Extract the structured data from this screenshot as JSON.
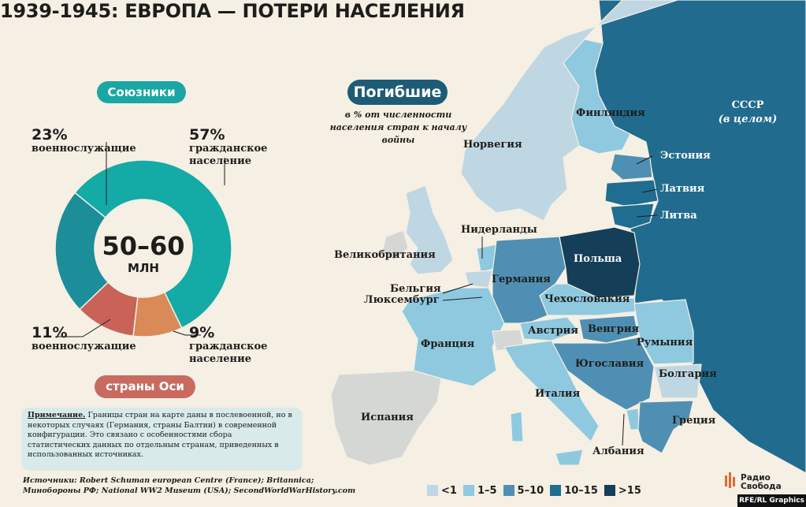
{
  "title": "1939-1945: ЕВРОПА — ПОТЕРИ НАСЕЛЕНИЯ",
  "allies_label": "Союзники",
  "axis_label": "страны Оси",
  "total": {
    "value": "50–60",
    "unit": "МЛН"
  },
  "deaths_badge": "Погибшие",
  "deaths_description": "в % от численности населения стран к началу войны",
  "chart_data": {
    "type": "pie",
    "center_label": "50–60 МЛН",
    "slices": [
      {
        "label": "военнослужащие",
        "group": "Союзники",
        "value": 23,
        "display": "23%",
        "color": "#1b8e99"
      },
      {
        "label": "гражданское население",
        "group": "Союзники",
        "value": 57,
        "display": "57%",
        "color": "#14aaa6"
      },
      {
        "label": "военнослужащие",
        "group": "страны Оси",
        "value": 11,
        "display": "11%",
        "color": "#c96257"
      },
      {
        "label": "гражданское население",
        "group": "страны Оси",
        "value": 9,
        "display": "9%",
        "color": "#d98a56"
      }
    ]
  },
  "map_legend": [
    {
      "label": "<1",
      "color": "#bfd7e2"
    },
    {
      "label": "1–5",
      "color": "#8ec9e0"
    },
    {
      "label": "5–10",
      "color": "#4f8fb3"
    },
    {
      "label": "10–15",
      "color": "#1f6d91"
    },
    {
      "label": ">15",
      "color": "#153e59"
    }
  ],
  "colors": {
    "neutral": "#d4d7d4",
    "ussr": "#216b8f"
  },
  "countries": [
    {
      "name": "СССР",
      "class": "10–15"
    },
    {
      "name": "(в целом)"
    },
    {
      "name": "Финляндия",
      "class": "1–5"
    },
    {
      "name": "Норвегия",
      "class": "<1"
    },
    {
      "name": "Эстония",
      "class": "5–10"
    },
    {
      "name": "Латвия",
      "class": "10–15"
    },
    {
      "name": "Литва",
      "class": "10–15"
    },
    {
      "name": "Нидерланды",
      "class": "1–5"
    },
    {
      "name": "Великобритания",
      "class": "<1"
    },
    {
      "name": "Польша",
      "class": ">15"
    },
    {
      "name": "Германия",
      "class": "5–10"
    },
    {
      "name": "Бельгия",
      "class": "<1"
    },
    {
      "name": "Люксембург",
      "class": "1–5"
    },
    {
      "name": "Чехословакия",
      "class": "1–5"
    },
    {
      "name": "Австрия",
      "class": "1–5"
    },
    {
      "name": "Венгрия",
      "class": "5–10"
    },
    {
      "name": "Франция",
      "class": "1–5"
    },
    {
      "name": "Румыния",
      "class": "1–5"
    },
    {
      "name": "Югославия",
      "class": "5–10"
    },
    {
      "name": "Болгария",
      "class": "<1"
    },
    {
      "name": "Италия",
      "class": "1–5"
    },
    {
      "name": "Испания",
      "class": "нет данных"
    },
    {
      "name": "Греция",
      "class": "5–10"
    },
    {
      "name": "Албания",
      "class": "1–5"
    }
  ],
  "note_head": "Примечание.",
  "note_text": "Границы стран на карте даны в послевоенной, но в некоторых случаях (Германия, страны Балтии) в современной конфигурации. Это связано с особенностями сбора статистических данных по отдельным странам, приведенных в использованных источниках.",
  "sources": "Источники: Robert Schuman european Centre (France); Britannica; Минобороны РФ; National WW2 Museum (USA); SecondWorldWarHistory.com",
  "logo": {
    "line1": "Радио",
    "line2": "Свобода"
  },
  "credit": "RFE/RL Graphics"
}
